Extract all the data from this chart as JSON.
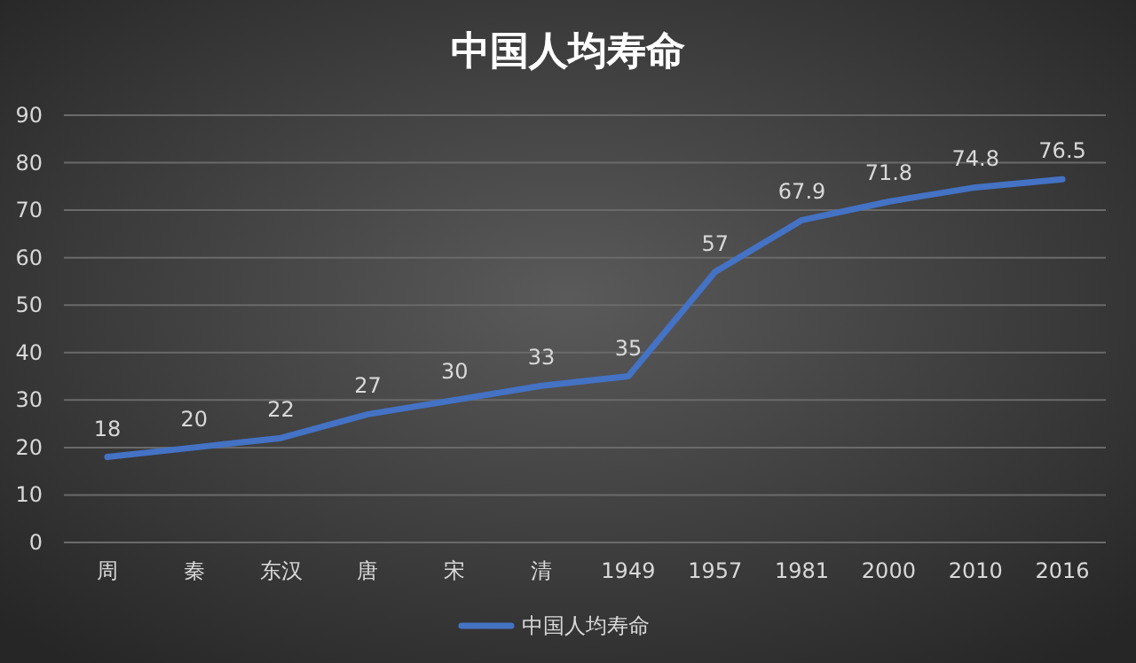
{
  "chart_data": {
    "type": "line",
    "title": "中国人均寿命",
    "categories": [
      "周",
      "秦",
      "东汉",
      "唐",
      "宋",
      "清",
      "1949",
      "1957",
      "1981",
      "2000",
      "2010",
      "2016"
    ],
    "series": [
      {
        "name": "中国人均寿命",
        "color": "#4472c4",
        "values": [
          18,
          20,
          22,
          27,
          30,
          33,
          35,
          57,
          67.9,
          71.8,
          74.8,
          76.5
        ]
      }
    ],
    "ylim": [
      0,
      90
    ],
    "yticks": [
      0,
      10,
      20,
      30,
      40,
      50,
      60,
      70,
      80,
      90
    ],
    "grid": "y",
    "data_labels": true,
    "legend": "bottom",
    "marker": "none",
    "line_style": "solid"
  }
}
